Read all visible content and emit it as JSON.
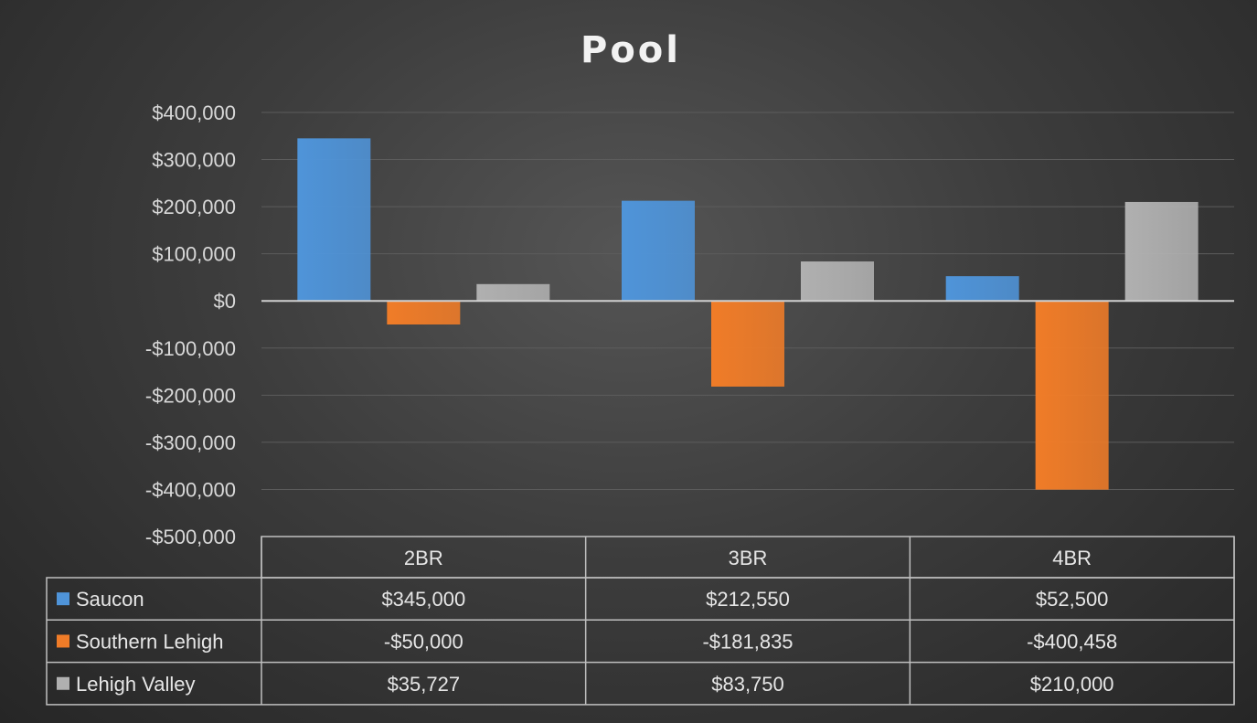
{
  "chart_data": {
    "type": "bar",
    "title": "Pool",
    "categories": [
      "2BR",
      "3BR",
      "4BR"
    ],
    "series": [
      {
        "name": "Saucon",
        "values": [
          345000,
          212550,
          52500
        ],
        "color": "#4f94d9"
      },
      {
        "name": "Southern Lehigh",
        "values": [
          -50000,
          -181835,
          -400458
        ],
        "color": "#f07c28"
      },
      {
        "name": "Lehigh Valley",
        "values": [
          35727,
          83750,
          210000
        ],
        "color": "#b0b0b0"
      }
    ],
    "ylim": [
      -500000,
      400000
    ],
    "yticks": [
      400000,
      300000,
      200000,
      100000,
      0,
      -100000,
      -200000,
      -300000,
      -400000,
      -500000
    ],
    "ytick_labels": [
      "$400,000",
      "$300,000",
      "$200,000",
      "$100,000",
      "$0",
      "-$100,000",
      "-$200,000",
      "-$300,000",
      "-$400,000",
      "-$500,000"
    ],
    "grid": true,
    "legend": "data-table",
    "data_table": {
      "rows": [
        {
          "name": "Saucon",
          "cells": [
            "$345,000",
            "$212,550",
            "$52,500"
          ]
        },
        {
          "name": "Southern Lehigh",
          "cells": [
            "-$50,000",
            "-$181,835",
            "-$400,458"
          ]
        },
        {
          "name": "Lehigh Valley",
          "cells": [
            "$35,727",
            "$83,750",
            "$210,000"
          ]
        }
      ]
    }
  }
}
